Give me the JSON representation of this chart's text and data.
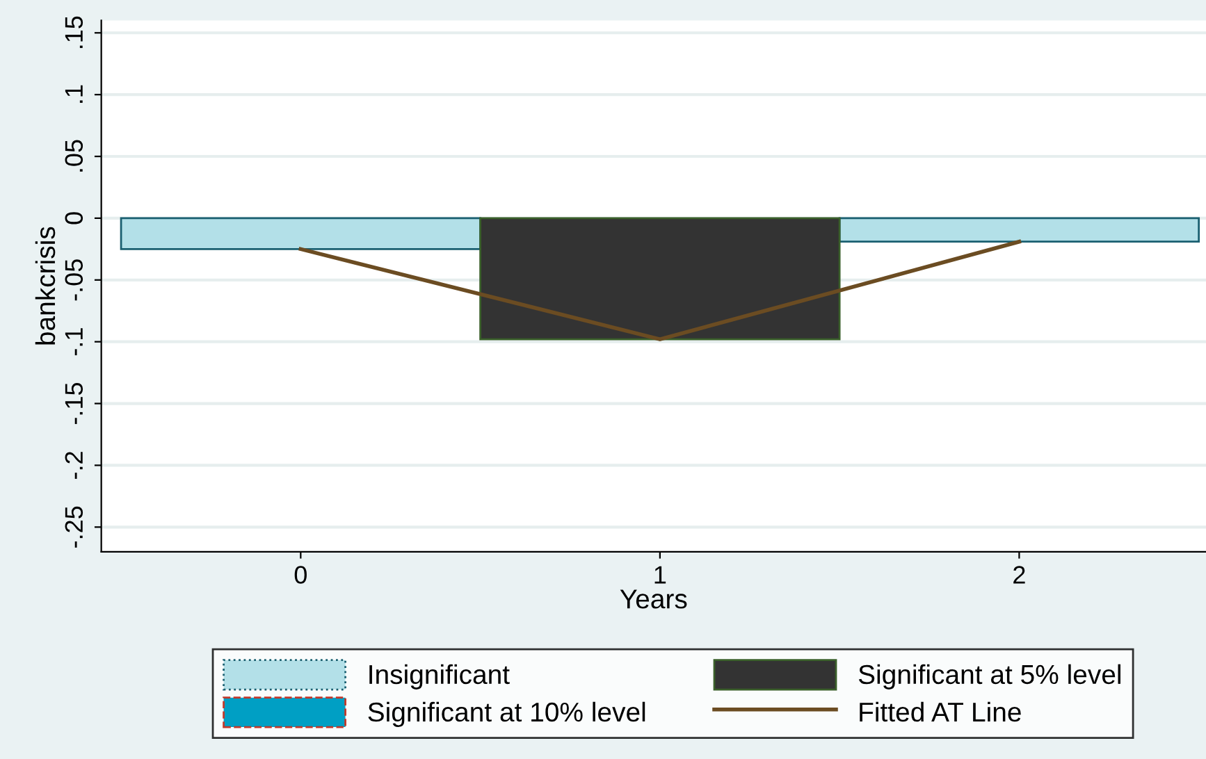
{
  "chart_data": {
    "type": "bar",
    "xlabel": "Years",
    "ylabel": "bankcrisis",
    "categories": [
      "0",
      "1",
      "2"
    ],
    "series": [
      {
        "name": "Insignificant",
        "color": "#b3e0e8",
        "values": [
          -0.025,
          null,
          -0.019
        ]
      },
      {
        "name": "Significant at 10% level",
        "color": "#009fc4",
        "values": [
          null,
          null,
          null
        ]
      },
      {
        "name": "Significant at 5% level",
        "color": "#333333",
        "values": [
          null,
          -0.098,
          null
        ]
      },
      {
        "name": "Fitted AT Line",
        "type": "line",
        "color": "#6b4c22",
        "values": [
          -0.025,
          -0.098,
          -0.019
        ]
      }
    ],
    "ylim": [
      -0.27,
      0.16
    ],
    "yticks": [
      {
        "value": -0.25,
        "label": "-.25"
      },
      {
        "value": -0.2,
        "label": "-.2"
      },
      {
        "value": -0.15,
        "label": "-.15"
      },
      {
        "value": -0.1,
        "label": "-.1"
      },
      {
        "value": -0.05,
        "label": "-.05"
      },
      0,
      {
        "value": 0.05,
        "label": ".05"
      },
      {
        "value": 0.1,
        "label": ".1"
      },
      {
        "value": 0.15,
        "label": ".15"
      }
    ],
    "grid": "y",
    "legend": "bottom"
  }
}
